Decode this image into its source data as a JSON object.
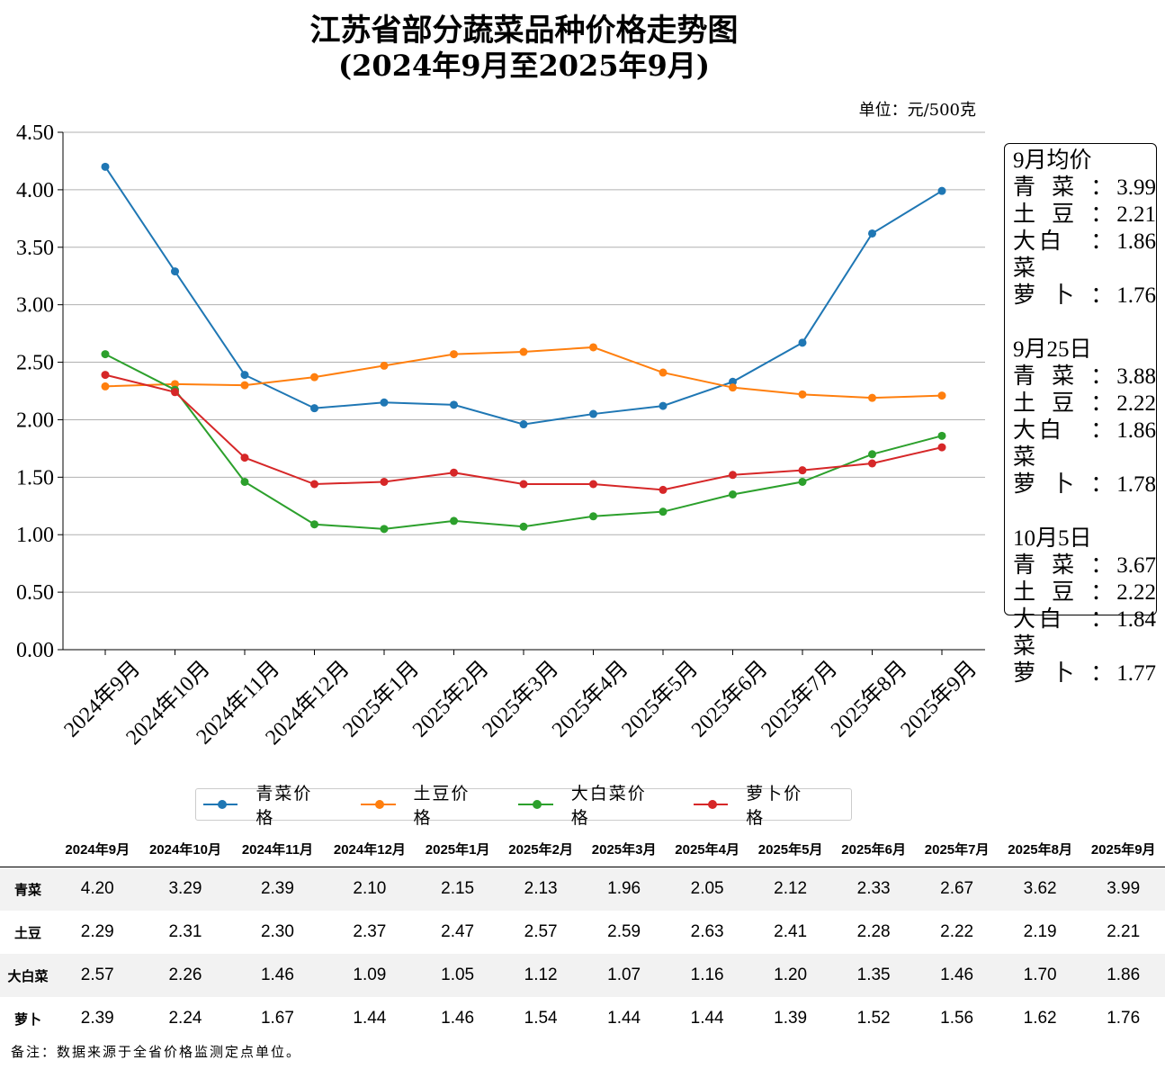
{
  "chart_data": {
    "type": "line",
    "title": "江苏省部分蔬菜品种价格走势图",
    "subtitle": "(2024年9月至2025年9月)",
    "unit": "单位：元/500克",
    "ylim": [
      0,
      4.5
    ],
    "yticks": [
      "0.00",
      "0.50",
      "1.00",
      "1.50",
      "2.00",
      "2.50",
      "3.00",
      "3.50",
      "4.00",
      "4.50"
    ],
    "grid": true,
    "categories": [
      "2024年9月",
      "2024年10月",
      "2024年11月",
      "2024年12月",
      "2025年1月",
      "2025年2月",
      "2025年3月",
      "2025年4月",
      "2025年5月",
      "2025年6月",
      "2025年7月",
      "2025年8月",
      "2025年9月"
    ],
    "series": [
      {
        "name": "青菜价格",
        "short": "青菜",
        "color": "#1f77b4",
        "values": [
          4.2,
          3.29,
          2.39,
          2.1,
          2.15,
          2.13,
          1.96,
          2.05,
          2.12,
          2.33,
          2.67,
          3.62,
          3.99
        ]
      },
      {
        "name": "土豆价格",
        "short": "土豆",
        "color": "#ff7f0e",
        "values": [
          2.29,
          2.31,
          2.3,
          2.37,
          2.47,
          2.57,
          2.59,
          2.63,
          2.41,
          2.28,
          2.22,
          2.19,
          2.21
        ]
      },
      {
        "name": "大白菜价格",
        "short": "大白菜",
        "color": "#2ca02c",
        "values": [
          2.57,
          2.26,
          1.46,
          1.09,
          1.05,
          1.12,
          1.07,
          1.16,
          1.2,
          1.35,
          1.46,
          1.7,
          1.86
        ]
      },
      {
        "name": "萝卜价格",
        "short": "萝卜",
        "color": "#d62728",
        "values": [
          2.39,
          2.24,
          1.67,
          1.44,
          1.46,
          1.54,
          1.44,
          1.44,
          1.39,
          1.52,
          1.56,
          1.62,
          1.76
        ]
      }
    ],
    "legend_position": "bottom"
  },
  "notes": [
    {
      "title": "9月均价",
      "items": [
        [
          "青",
          "菜",
          "3.99"
        ],
        [
          "土",
          "豆",
          "2.21"
        ],
        [
          "大白菜",
          "",
          "1.86"
        ],
        [
          "萝",
          "卜",
          "1.76"
        ]
      ]
    },
    {
      "title": "9月25日",
      "items": [
        [
          "青",
          "菜",
          "3.88"
        ],
        [
          "土",
          "豆",
          "2.22"
        ],
        [
          "大白菜",
          "",
          "1.86"
        ],
        [
          "萝",
          "卜",
          "1.78"
        ]
      ]
    },
    {
      "title": "10月5日",
      "items": [
        [
          "青",
          "菜",
          "3.67"
        ],
        [
          "土",
          "豆",
          "2.22"
        ],
        [
          "大白菜",
          "",
          "1.84"
        ],
        [
          "萝",
          "卜",
          "1.77"
        ]
      ]
    }
  ],
  "colon": "：",
  "footnote": "备注：数据来源于全省价格监测定点单位。"
}
